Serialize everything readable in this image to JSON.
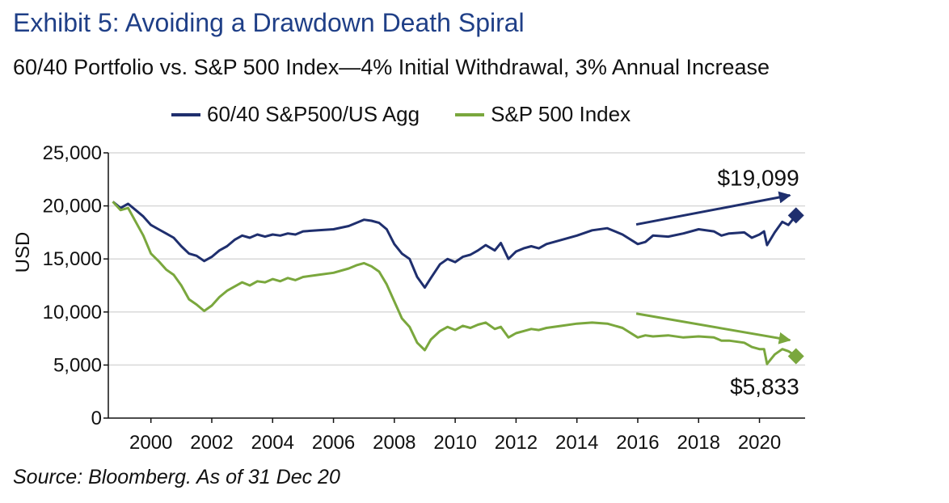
{
  "title": "Exhibit 5: Avoiding a Drawdown Death Spiral",
  "subtitle": "60/40 Portfolio vs. S&P 500 Index—4% Initial Withdrawal, 3% Annual Increase",
  "source": "Source: Bloomberg. As of 31 Dec 20",
  "colors": {
    "series1": "#1f2f6e",
    "series2": "#7aa73d",
    "grid": "#d9d9d9"
  },
  "chart_data": {
    "type": "line",
    "title": "Exhibit 5: Avoiding a Drawdown Death Spiral",
    "subtitle": "60/40 Portfolio vs. S&P 500 Index—4% Initial Withdrawal, 3% Annual Increase",
    "xlabel": "",
    "ylabel": "USD",
    "xlim": [
      1998.6,
      2021.5
    ],
    "ylim": [
      0,
      25000
    ],
    "x_ticks": [
      2000,
      2002,
      2004,
      2006,
      2008,
      2010,
      2012,
      2014,
      2016,
      2018,
      2020
    ],
    "x_tick_labels": [
      "2000",
      "2002",
      "2004",
      "2006",
      "2008",
      "2010",
      "2012",
      "2014",
      "2016",
      "2018",
      "2020"
    ],
    "y_ticks": [
      0,
      5000,
      10000,
      15000,
      20000,
      25000
    ],
    "y_tick_labels": [
      "0",
      "5,000",
      "10,000",
      "15,000",
      "20,000",
      "25,000"
    ],
    "grid": "horizontal",
    "legend": "top",
    "series": [
      {
        "name": "60/40 S&P500/US Agg",
        "x": [
          1998.75,
          1999.0,
          1999.25,
          1999.5,
          1999.75,
          2000.0,
          2000.25,
          2000.5,
          2000.75,
          2001.0,
          2001.25,
          2001.5,
          2001.75,
          2002.0,
          2002.25,
          2002.5,
          2002.75,
          2003.0,
          2003.25,
          2003.5,
          2003.75,
          2004.0,
          2004.25,
          2004.5,
          2004.75,
          2005.0,
          2005.5,
          2006.0,
          2006.5,
          2006.75,
          2007.0,
          2007.25,
          2007.5,
          2007.75,
          2008.0,
          2008.25,
          2008.5,
          2008.75,
          2009.0,
          2009.2,
          2009.5,
          2009.75,
          2010.0,
          2010.25,
          2010.5,
          2010.75,
          2011.0,
          2011.3,
          2011.5,
          2011.75,
          2012.0,
          2012.25,
          2012.5,
          2012.75,
          2013.0,
          2013.5,
          2014.0,
          2014.5,
          2015.0,
          2015.5,
          2016.0,
          2016.25,
          2016.5,
          2017.0,
          2017.5,
          2018.0,
          2018.5,
          2018.75,
          2019.0,
          2019.5,
          2019.75,
          2020.0,
          2020.15,
          2020.25,
          2020.5,
          2020.75,
          2020.95,
          2021.2
        ],
        "values": [
          20400,
          19800,
          20200,
          19600,
          19000,
          18200,
          17800,
          17400,
          17000,
          16200,
          15500,
          15300,
          14800,
          15200,
          15800,
          16200,
          16800,
          17200,
          17000,
          17300,
          17100,
          17300,
          17200,
          17400,
          17300,
          17600,
          17700,
          17800,
          18100,
          18400,
          18700,
          18600,
          18400,
          17800,
          16400,
          15500,
          15000,
          13300,
          12300,
          13200,
          14500,
          15000,
          14700,
          15200,
          15400,
          15800,
          16300,
          15800,
          16500,
          15000,
          15700,
          16000,
          16200,
          16000,
          16400,
          16800,
          17200,
          17700,
          17900,
          17300,
          16400,
          16600,
          17200,
          17100,
          17400,
          17800,
          17600,
          17200,
          17400,
          17500,
          17000,
          17300,
          17600,
          16300,
          17500,
          18500,
          18200,
          19099
        ]
      },
      {
        "name": "S&P 500 Index",
        "x": [
          1998.75,
          1999.0,
          1999.25,
          1999.5,
          1999.75,
          2000.0,
          2000.25,
          2000.5,
          2000.75,
          2001.0,
          2001.25,
          2001.5,
          2001.75,
          2002.0,
          2002.25,
          2002.5,
          2002.75,
          2003.0,
          2003.25,
          2003.5,
          2003.75,
          2004.0,
          2004.25,
          2004.5,
          2004.75,
          2005.0,
          2005.5,
          2006.0,
          2006.5,
          2006.75,
          2007.0,
          2007.25,
          2007.5,
          2007.75,
          2008.0,
          2008.25,
          2008.5,
          2008.75,
          2009.0,
          2009.2,
          2009.5,
          2009.75,
          2010.0,
          2010.25,
          2010.5,
          2010.75,
          2011.0,
          2011.3,
          2011.5,
          2011.75,
          2012.0,
          2012.25,
          2012.5,
          2012.75,
          2013.0,
          2013.5,
          2014.0,
          2014.5,
          2015.0,
          2015.5,
          2016.0,
          2016.25,
          2016.5,
          2017.0,
          2017.5,
          2018.0,
          2018.5,
          2018.75,
          2019.0,
          2019.5,
          2019.75,
          2020.0,
          2020.15,
          2020.25,
          2020.5,
          2020.75,
          2020.95,
          2021.2
        ],
        "values": [
          20400,
          19600,
          19800,
          18500,
          17200,
          15500,
          14800,
          14000,
          13500,
          12500,
          11200,
          10700,
          10100,
          10600,
          11400,
          12000,
          12400,
          12800,
          12500,
          12900,
          12800,
          13100,
          12900,
          13200,
          13000,
          13300,
          13500,
          13700,
          14100,
          14400,
          14600,
          14300,
          13800,
          12600,
          11000,
          9400,
          8600,
          7100,
          6400,
          7400,
          8200,
          8600,
          8300,
          8700,
          8500,
          8800,
          9000,
          8400,
          8600,
          7600,
          8000,
          8200,
          8400,
          8300,
          8500,
          8700,
          8900,
          9000,
          8900,
          8500,
          7600,
          7800,
          7700,
          7800,
          7600,
          7700,
          7600,
          7300,
          7300,
          7100,
          6700,
          6500,
          6500,
          5100,
          6000,
          6500,
          6300,
          5833
        ]
      }
    ],
    "annotations": [
      {
        "text": "$19,099",
        "x": 2021.2,
        "y": 19099,
        "series": 0
      },
      {
        "text": "$5,833",
        "x": 2021.2,
        "y": 5833,
        "series": 1
      }
    ]
  }
}
